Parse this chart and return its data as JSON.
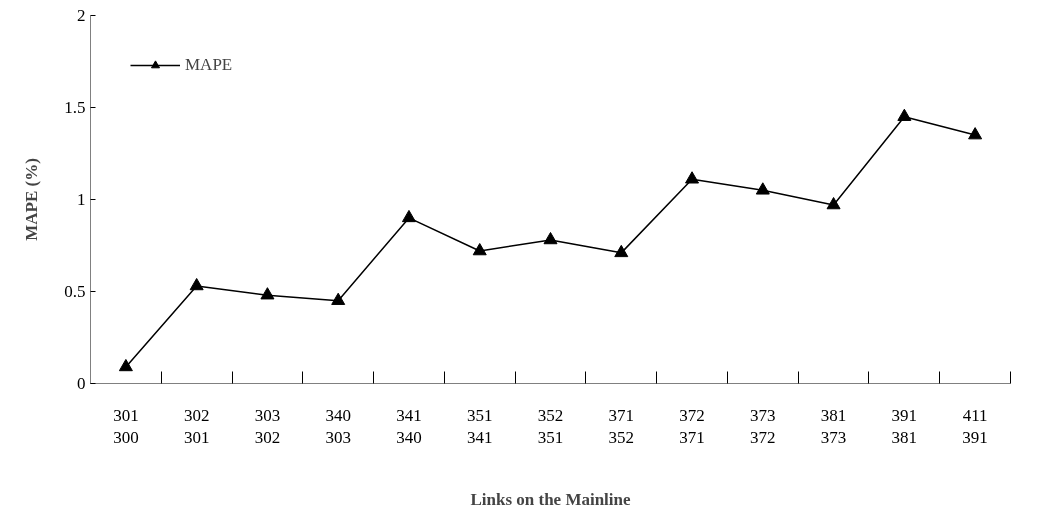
{
  "chart_data": {
    "type": "line",
    "xlabel": "Links on the Mainline",
    "ylabel": "MAPE (%)",
    "categories": [
      "301\n300",
      "302\n301",
      "303\n302",
      "340\n303",
      "341\n340",
      "351\n341",
      "352\n351",
      "371\n352",
      "372\n371",
      "373\n372",
      "381\n373",
      "391\n381",
      "411\n391"
    ],
    "series": [
      {
        "name": "MAPE",
        "color": "#000000",
        "values": [
          0.09,
          0.53,
          0.48,
          0.45,
          0.9,
          0.72,
          0.78,
          0.71,
          1.11,
          1.05,
          0.97,
          1.45,
          1.35
        ]
      }
    ],
    "ylim": [
      0,
      2
    ],
    "yticks": [
      0,
      {
        "value": 0.5,
        "label": "0.5"
      },
      1,
      {
        "value": 1.5,
        "label": "1.5"
      },
      2
    ],
    "grid": false,
    "legend": "top left",
    "marker": "triangle",
    "line_style": "solid"
  }
}
